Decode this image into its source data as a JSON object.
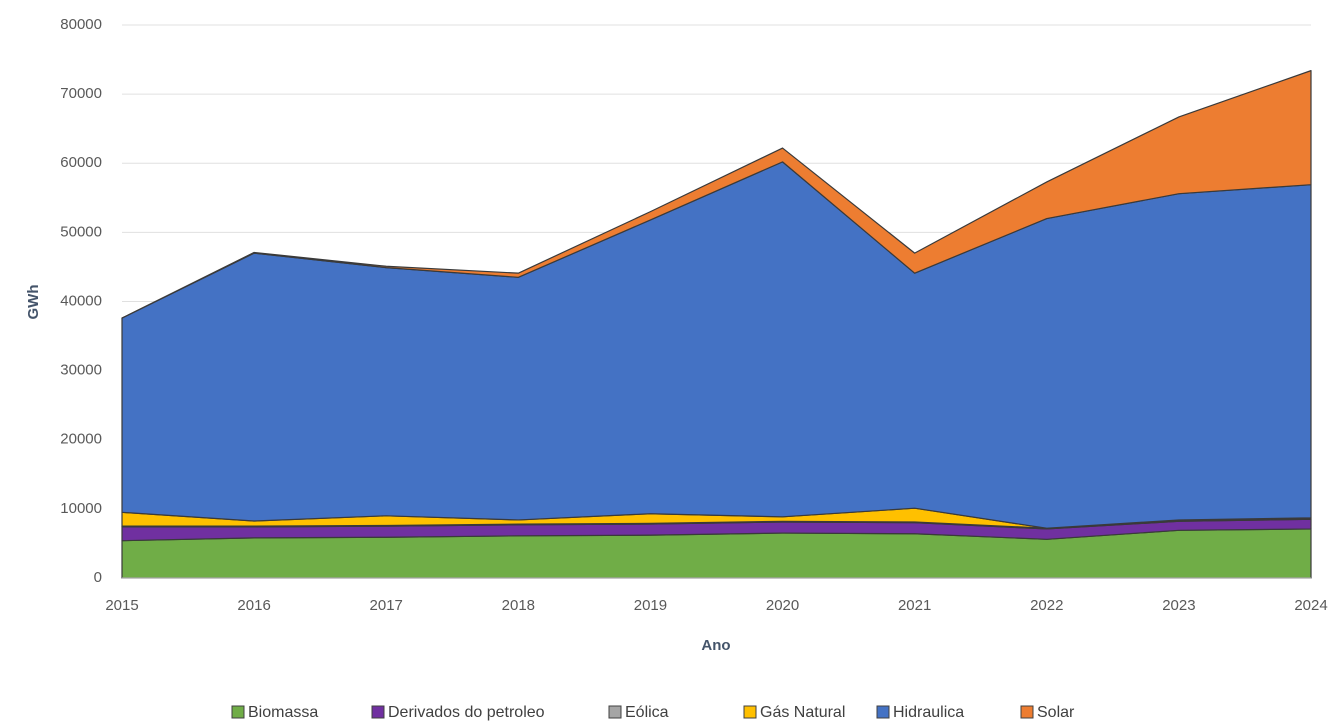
{
  "chart_data": {
    "type": "area",
    "x_label": "Ano",
    "y_label": "GWh",
    "categories": [
      "2015",
      "2016",
      "2017",
      "2018",
      "2019",
      "2020",
      "2021",
      "2022",
      "2023",
      "2024"
    ],
    "series": [
      {
        "name": "Biomassa",
        "color": "#70ad47",
        "values": [
          5400,
          5800,
          5900,
          6100,
          6200,
          6500,
          6400,
          5600,
          6900,
          7100
        ]
      },
      {
        "name": "Derivados do petroleo",
        "color": "#7030a0",
        "values": [
          2000,
          1600,
          1600,
          1600,
          1600,
          1600,
          1600,
          1500,
          1300,
          1400
        ]
      },
      {
        "name": "Eólica",
        "color": "#a5a5a5",
        "values": [
          100,
          100,
          100,
          100,
          100,
          100,
          100,
          100,
          100,
          100
        ]
      },
      {
        "name": "Gás Natural",
        "color": "#ffc000",
        "values": [
          2000,
          750,
          1400,
          600,
          1400,
          650,
          2000,
          0,
          100,
          100
        ]
      },
      {
        "name": "Hidraulica",
        "color": "#4472c4",
        "values": [
          28100,
          38750,
          35900,
          35100,
          42500,
          51350,
          34000,
          44800,
          47200,
          48200
        ]
      },
      {
        "name": "Solar",
        "color": "#ed7d31",
        "values": [
          0,
          100,
          200,
          600,
          1200,
          2000,
          2900,
          5300,
          11100,
          16500
        ]
      }
    ],
    "stacked": true,
    "ylim": [
      0,
      80000
    ],
    "yticks": [
      0,
      10000,
      20000,
      30000,
      40000,
      50000,
      60000,
      70000,
      80000
    ],
    "grid": true,
    "legend": "bottom"
  }
}
